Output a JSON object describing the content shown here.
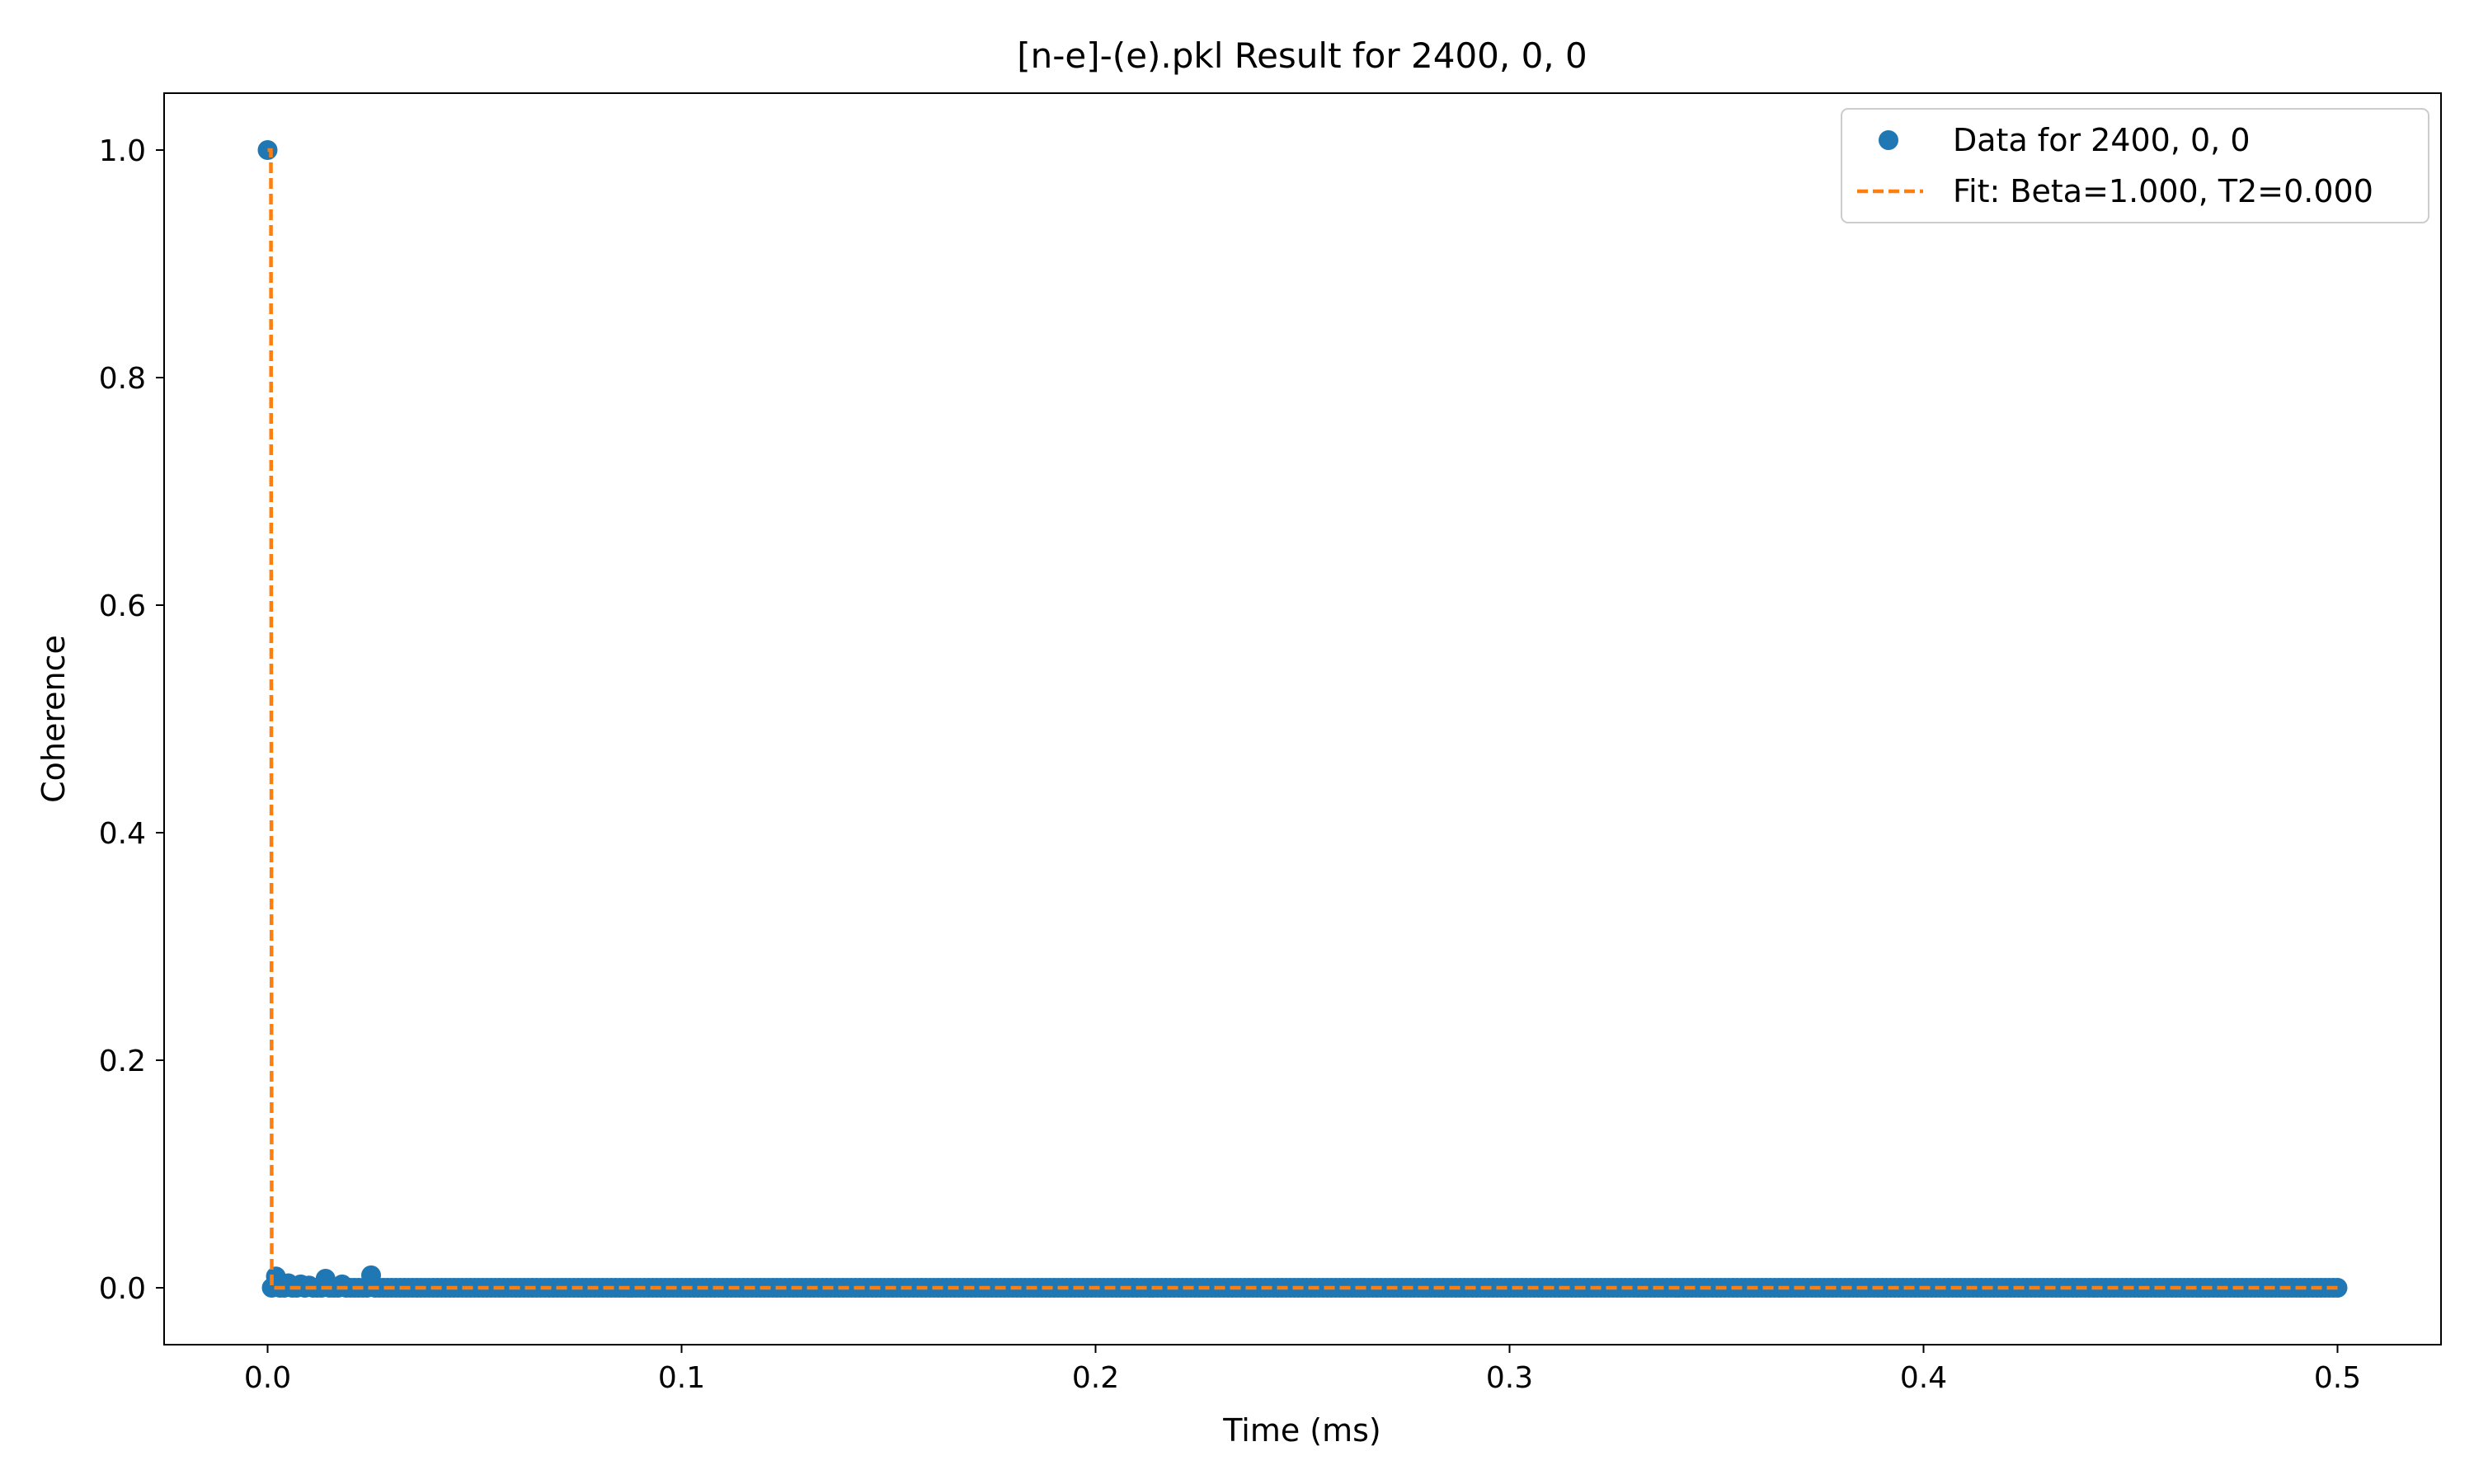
{
  "chart_data": {
    "type": "scatter",
    "title": "[n-e]-(e).pkl Result for 2400, 0, 0",
    "xlabel": "Time (ms)",
    "ylabel": "Coherence",
    "xlim": [
      -0.025,
      0.525
    ],
    "ylim": [
      -0.05,
      1.05
    ],
    "xticks": [
      0.0,
      0.1,
      0.2,
      0.3,
      0.4,
      0.5
    ],
    "xtick_labels": [
      "0.0",
      "0.1",
      "0.2",
      "0.3",
      "0.4",
      "0.5"
    ],
    "yticks": [
      0.0,
      0.2,
      0.4,
      0.6,
      0.8,
      1.0
    ],
    "ytick_labels": [
      "0.0",
      "0.2",
      "0.4",
      "0.6",
      "0.8",
      "1.0"
    ],
    "grid": false,
    "legend_position": "top-right",
    "series": [
      {
        "name": "Data for 2400, 0, 0",
        "kind": "markers",
        "color": "#1f77b4",
        "x_start": 0.0,
        "x_end": 0.5,
        "x_step": 0.001,
        "y_baseline": 0.0,
        "points_override": [
          [
            0.0,
            1.0
          ],
          [
            0.002,
            0.01
          ],
          [
            0.005,
            0.004
          ],
          [
            0.008,
            0.003
          ],
          [
            0.01,
            0.002
          ],
          [
            0.014,
            0.008
          ],
          [
            0.018,
            0.003
          ],
          [
            0.025,
            0.011
          ]
        ]
      },
      {
        "name": "Fit: Beta=1.000, T2=0.000",
        "kind": "dashed-line",
        "color": "#ff7f0e",
        "x": [
          0.0,
          0.0,
          0.001,
          0.01,
          0.1,
          0.2,
          0.3,
          0.4,
          0.5
        ],
        "y": [
          1.0,
          1.0,
          0.0,
          0.0,
          0.0,
          0.0,
          0.0,
          0.0,
          0.0
        ]
      }
    ]
  }
}
